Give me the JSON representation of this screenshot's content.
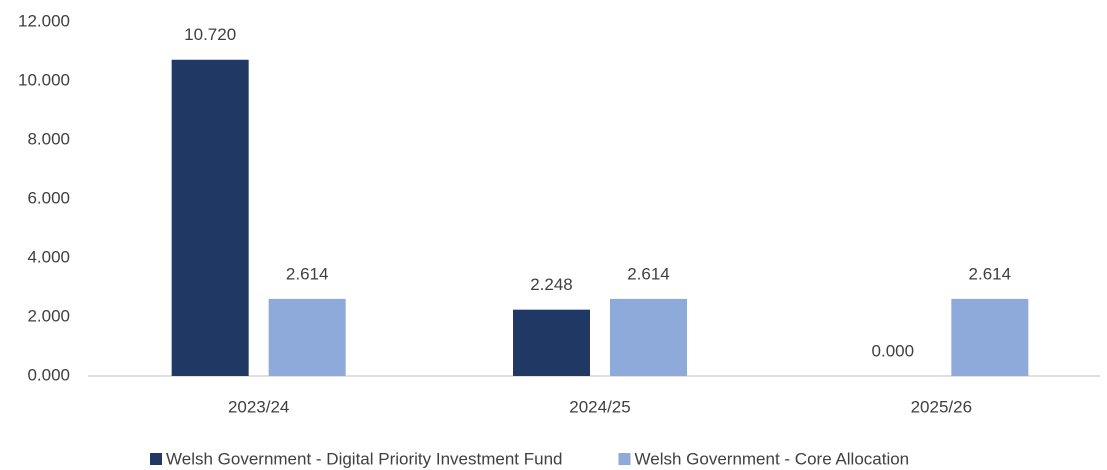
{
  "chart_data": {
    "type": "bar",
    "categories": [
      "2023/24",
      "2024/25",
      "2025/26"
    ],
    "series": [
      {
        "name": "Welsh Government - Digital Priority Investment Fund",
        "color": "#1f3864",
        "values": [
          10.72,
          2.248,
          0
        ],
        "value_labels": [
          "10.720",
          "2.248",
          "0.000"
        ]
      },
      {
        "name": "Welsh Government - Core Allocation",
        "color": "#8eaadb",
        "values": [
          2.614,
          2.614,
          2.614
        ],
        "value_labels": [
          "2.614",
          "2.614",
          "2.614"
        ]
      }
    ],
    "ylim": [
      0,
      12
    ],
    "yticks": [
      {
        "value": 0,
        "label": "0.000"
      },
      {
        "value": 2,
        "label": "2.000"
      },
      {
        "value": 4,
        "label": "4.000"
      },
      {
        "value": 6,
        "label": "6.000"
      },
      {
        "value": 8,
        "label": "8.000"
      },
      {
        "value": 10,
        "label": "10.000"
      },
      {
        "value": 12,
        "label": "12.000"
      }
    ],
    "grid": false,
    "legend": "bottom"
  }
}
